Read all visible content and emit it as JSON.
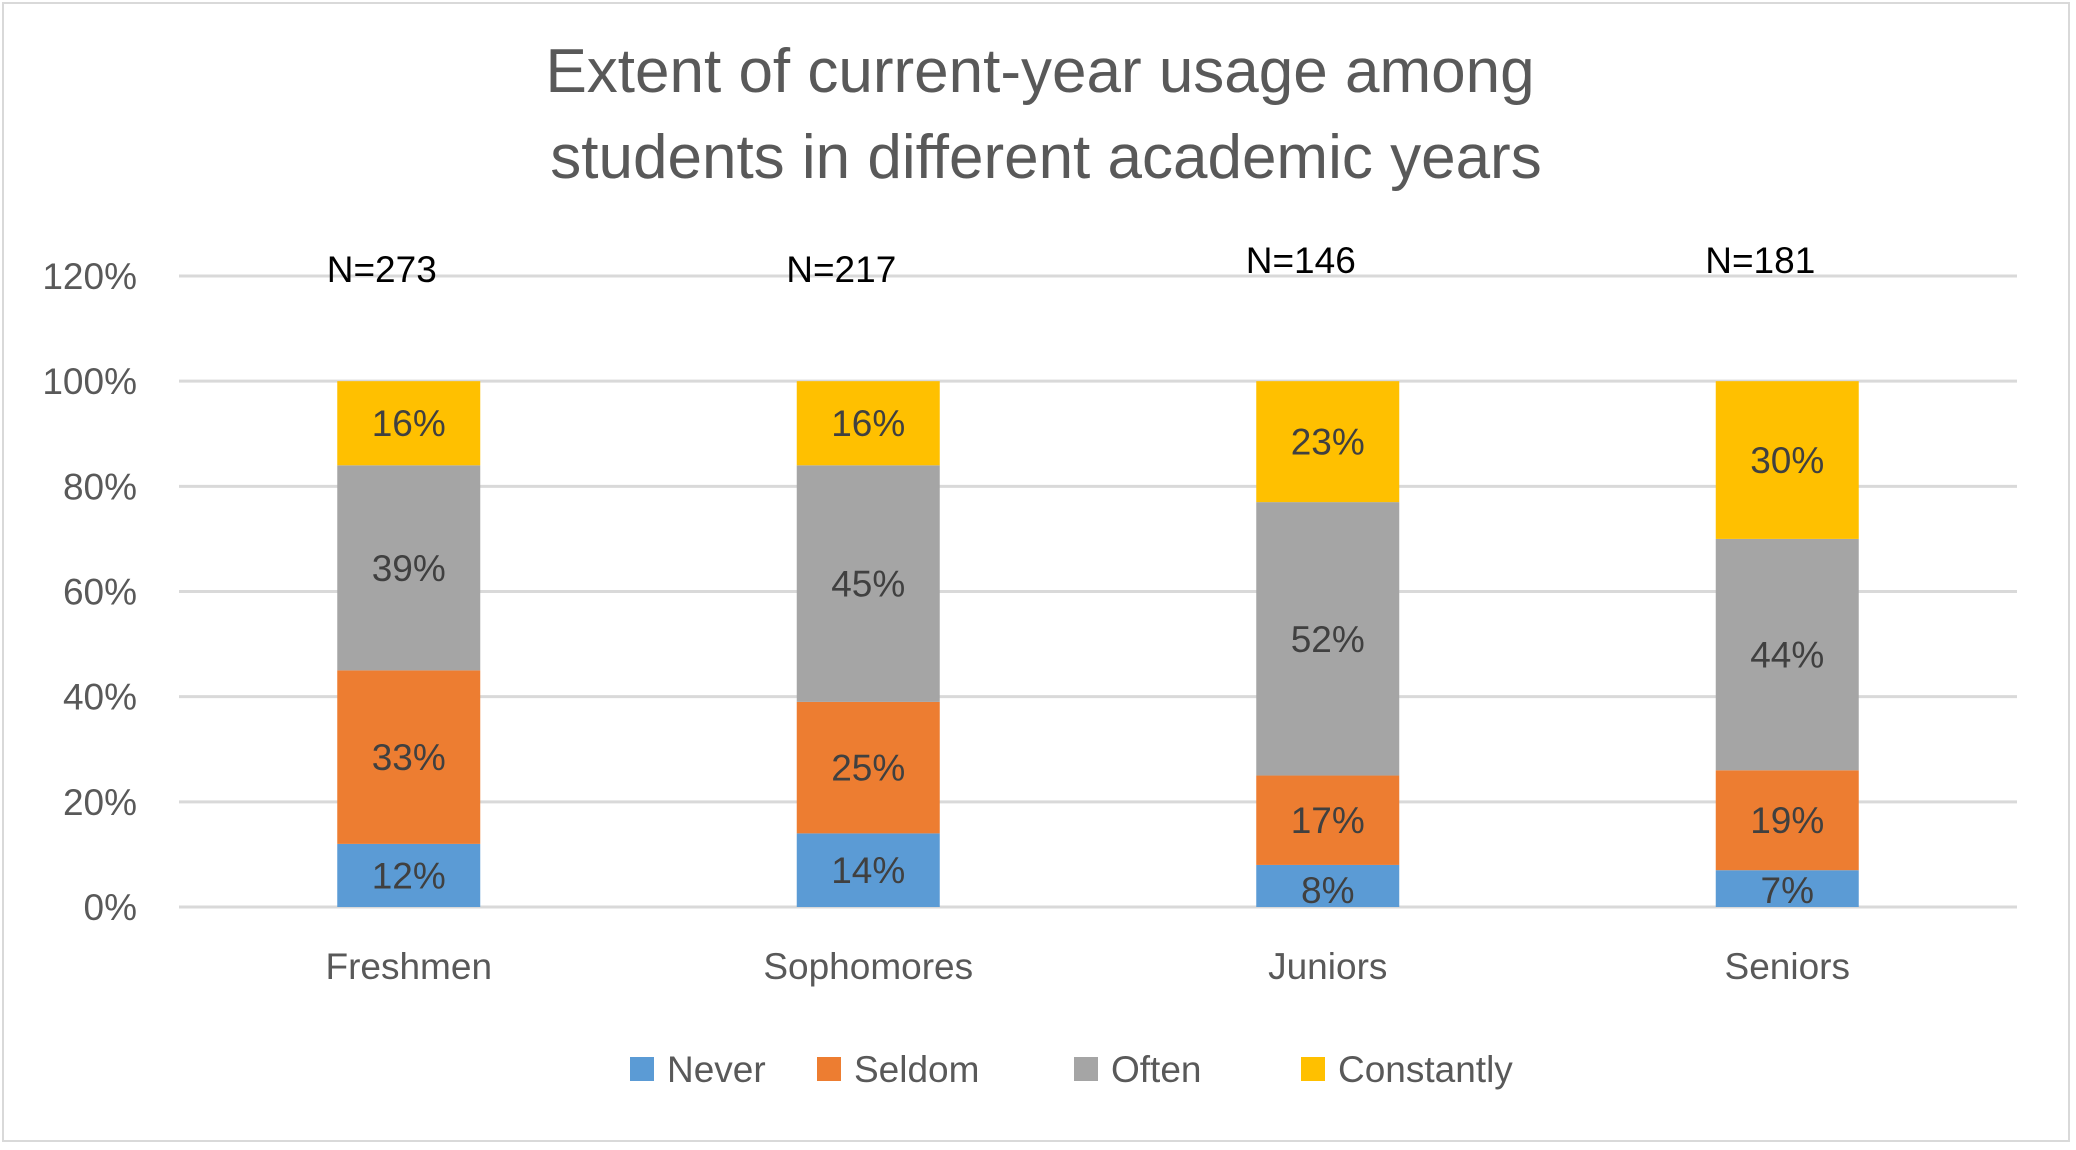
{
  "chart_data": {
    "type": "bar",
    "stacked": true,
    "title": [
      "Extent of current-year usage among",
      "students in different academic years"
    ],
    "categories": [
      "Freshmen",
      "Sophomores",
      "Juniors",
      "Seniors"
    ],
    "annotations": [
      "N=273",
      "N=217",
      "N=146",
      "N=181"
    ],
    "series": [
      {
        "name": "Never",
        "color": "#5B9BD5",
        "values": [
          12,
          14,
          8,
          7
        ]
      },
      {
        "name": "Seldom",
        "color": "#ED7D31",
        "values": [
          33,
          25,
          17,
          19
        ]
      },
      {
        "name": "Often",
        "color": "#A5A5A5",
        "values": [
          39,
          45,
          52,
          44
        ]
      },
      {
        "name": "Constantly",
        "color": "#FFC000",
        "values": [
          16,
          16,
          23,
          30
        ]
      }
    ],
    "value_suffix": "%",
    "yticks": [
      "0%",
      "20%",
      "40%",
      "60%",
      "80%",
      "100%",
      "120%"
    ],
    "ylim": [
      0,
      120
    ],
    "grid": true,
    "legend": "bottom"
  }
}
